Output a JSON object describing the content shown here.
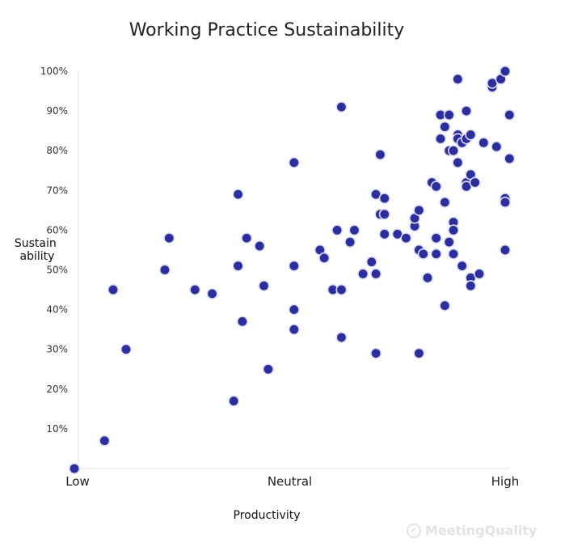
{
  "chart_data": {
    "type": "scatter",
    "title": "Working Practice Sustainability",
    "xlabel": "Productivity",
    "ylabel_lines": [
      "Sustain",
      "ability"
    ],
    "xlim": [
      0,
      100
    ],
    "ylim": [
      0,
      100
    ],
    "x_ticks": [
      {
        "value": 0,
        "label": "Low"
      },
      {
        "value": 50,
        "label": "Neutral"
      },
      {
        "value": 100,
        "label": "High"
      }
    ],
    "y_ticks": [
      {
        "value": 10,
        "label": "10%"
      },
      {
        "value": 20,
        "label": "20%"
      },
      {
        "value": 30,
        "label": "30%"
      },
      {
        "value": 40,
        "label": "40%"
      },
      {
        "value": 50,
        "label": "50%"
      },
      {
        "value": 60,
        "label": "60%"
      },
      {
        "value": 70,
        "label": "70%"
      },
      {
        "value": 80,
        "label": "80%"
      },
      {
        "value": 90,
        "label": "90%"
      },
      {
        "value": 100,
        "label": "100%"
      }
    ],
    "grid": false,
    "points": [
      [
        0,
        0
      ],
      [
        7,
        7
      ],
      [
        9,
        45
      ],
      [
        12,
        30
      ],
      [
        21,
        50
      ],
      [
        22,
        58
      ],
      [
        28,
        45
      ],
      [
        32,
        44
      ],
      [
        37,
        17
      ],
      [
        38,
        69
      ],
      [
        38,
        51
      ],
      [
        39,
        37
      ],
      [
        40,
        58
      ],
      [
        43,
        56
      ],
      [
        44,
        46
      ],
      [
        45,
        25
      ],
      [
        51,
        77
      ],
      [
        51,
        51
      ],
      [
        51,
        40
      ],
      [
        51,
        35
      ],
      [
        57,
        55
      ],
      [
        58,
        53
      ],
      [
        60,
        45
      ],
      [
        61,
        60
      ],
      [
        62,
        91
      ],
      [
        62,
        45
      ],
      [
        62,
        33
      ],
      [
        64,
        57
      ],
      [
        65,
        60
      ],
      [
        67,
        49
      ],
      [
        69,
        52
      ],
      [
        70,
        49
      ],
      [
        70,
        69
      ],
      [
        70,
        29
      ],
      [
        71,
        64
      ],
      [
        71,
        79
      ],
      [
        72,
        64
      ],
      [
        72,
        68
      ],
      [
        72,
        59
      ],
      [
        75,
        59
      ],
      [
        77,
        58
      ],
      [
        79,
        61
      ],
      [
        79,
        63
      ],
      [
        80,
        65
      ],
      [
        80,
        55
      ],
      [
        80,
        29
      ],
      [
        81,
        54
      ],
      [
        82,
        48
      ],
      [
        83,
        72
      ],
      [
        84,
        71
      ],
      [
        84,
        58
      ],
      [
        84,
        54
      ],
      [
        85,
        89
      ],
      [
        85,
        83
      ],
      [
        86,
        86
      ],
      [
        86,
        67
      ],
      [
        86,
        41
      ],
      [
        87,
        89
      ],
      [
        87,
        80
      ],
      [
        87,
        57
      ],
      [
        88,
        62
      ],
      [
        88,
        60
      ],
      [
        88,
        54
      ],
      [
        88,
        80
      ],
      [
        89,
        83
      ],
      [
        89,
        84
      ],
      [
        89,
        77
      ],
      [
        89,
        98
      ],
      [
        89,
        83
      ],
      [
        90,
        82
      ],
      [
        90,
        51
      ],
      [
        91,
        72
      ],
      [
        91,
        71
      ],
      [
        91,
        90
      ],
      [
        91,
        83
      ],
      [
        92,
        74
      ],
      [
        92,
        48
      ],
      [
        92,
        46
      ],
      [
        92,
        84
      ],
      [
        93,
        72
      ],
      [
        94,
        49
      ],
      [
        95,
        82
      ],
      [
        97,
        96
      ],
      [
        97,
        97
      ],
      [
        98,
        81
      ],
      [
        99,
        98
      ],
      [
        100,
        100
      ],
      [
        100,
        68
      ],
      [
        100,
        67
      ],
      [
        100,
        55
      ],
      [
        101,
        89
      ],
      [
        101,
        78
      ]
    ]
  },
  "watermark": "MeetingQuality"
}
